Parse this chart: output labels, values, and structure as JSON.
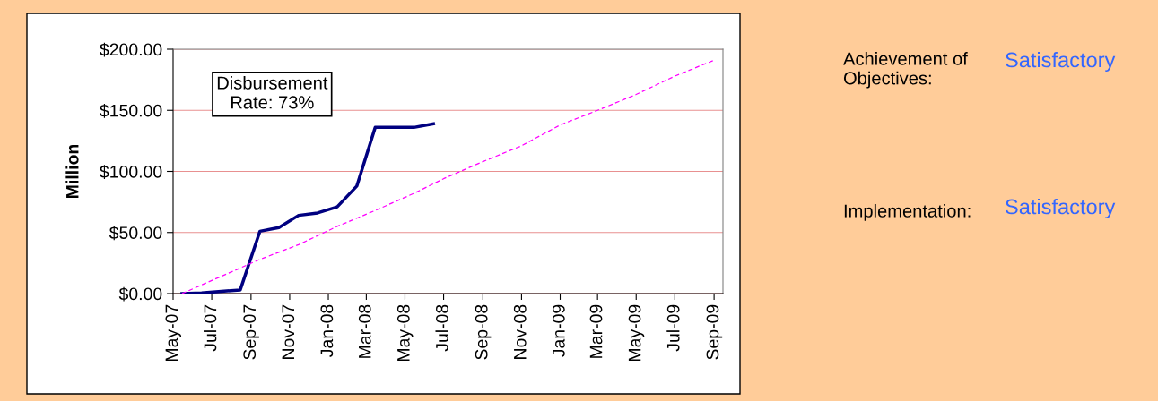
{
  "chart_data": {
    "type": "line",
    "ylabel": "Million",
    "annotations": [
      "Disbursement\nRate: 73%",
      "Achievement of\nObjectives:",
      "Satisfactory",
      "Implementation:",
      "Satisfactory"
    ],
    "xlim": [
      "2007-05-01",
      "2009-09-15"
    ],
    "xticks": [
      {
        "value": "2007-05-01",
        "label": "May-07"
      },
      {
        "value": "2007-07-01",
        "label": "Jul-07"
      },
      {
        "value": "2007-09-01",
        "label": "Sep-07"
      },
      {
        "value": "2007-11-01",
        "label": "Nov-07"
      },
      {
        "value": "2008-01-01",
        "label": "Jan-08"
      },
      {
        "value": "2008-03-01",
        "label": "Mar-08"
      },
      {
        "value": "2008-05-01",
        "label": "May-08"
      },
      {
        "value": "2008-07-01",
        "label": "Jul-08"
      },
      {
        "value": "2008-09-01",
        "label": "Sep-08"
      },
      {
        "value": "2008-11-01",
        "label": "Nov-08"
      },
      {
        "value": "2009-01-01",
        "label": "Jan-09"
      },
      {
        "value": "2009-03-01",
        "label": "Mar-09"
      },
      {
        "value": "2009-05-01",
        "label": "May-09"
      },
      {
        "value": "2009-07-01",
        "label": "Jul-09"
      },
      {
        "value": "2009-09-01",
        "label": "Sep-09"
      }
    ],
    "ylim": [
      0,
      200
    ],
    "yticks": [
      {
        "value": 0,
        "label": "$0.00"
      },
      {
        "value": 50,
        "label": "$50.00"
      },
      {
        "value": 100,
        "label": "$100.00"
      },
      {
        "value": 150,
        "label": "$150.00"
      },
      {
        "value": 200,
        "label": "$200.00"
      }
    ],
    "grid": "y",
    "series": [
      {
        "color": "#000080",
        "line_style": "solid",
        "x": [
          "2007-05-15",
          "2007-06-15",
          "2007-08-15",
          "2007-09-15",
          "2007-10-15",
          "2007-11-15",
          "2007-12-15",
          "2008-01-15",
          "2008-02-15",
          "2008-03-15",
          "2008-05-15",
          "2008-06-15"
        ],
        "values": [
          0,
          0.5,
          3,
          51,
          54,
          64,
          66,
          71,
          88,
          136,
          136,
          139
        ]
      },
      {
        "color": "#ff00ff",
        "line_style": "dashed",
        "x": [
          "2007-05-15",
          "2007-09-15",
          "2007-11-15",
          "2008-01-15",
          "2008-03-15",
          "2008-05-15",
          "2008-07-01",
          "2008-09-01",
          "2008-11-01",
          "2009-01-01",
          "2009-03-01",
          "2009-05-01",
          "2009-07-01",
          "2009-09-01"
        ],
        "values": [
          0,
          28,
          40,
          55,
          68,
          82,
          94,
          108,
          121,
          138,
          150,
          163,
          178,
          191
        ]
      }
    ]
  }
}
